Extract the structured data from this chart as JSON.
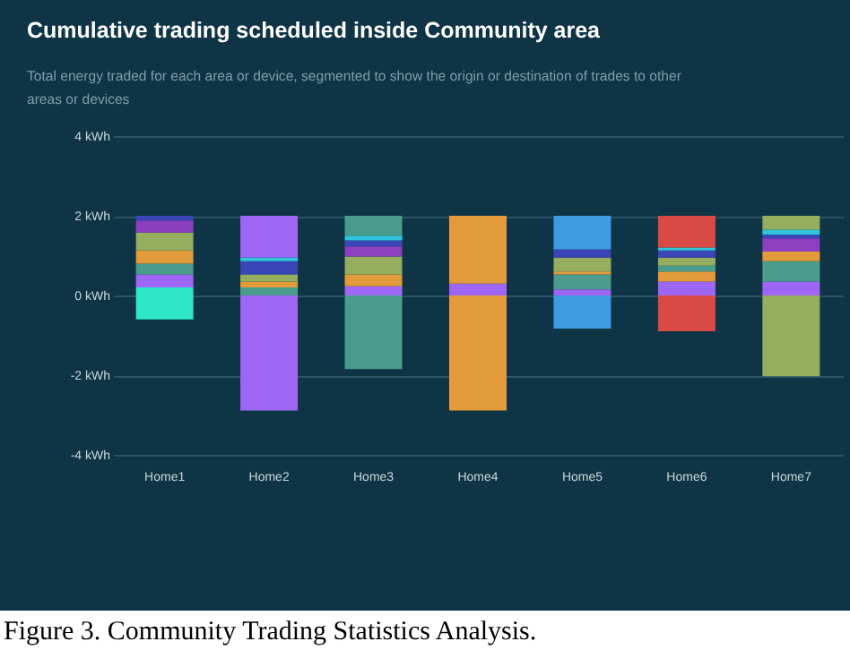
{
  "chart_data": {
    "type": "bar",
    "stacked": true,
    "title": "Cumulative trading scheduled inside Community area",
    "subtitle": "Total energy traded for each area or device, segmented to show the origin or destination of trades to other areas or devices",
    "categories": [
      "Home1",
      "Home2",
      "Home3",
      "Home4",
      "Home5",
      "Home6",
      "Home7"
    ],
    "series": [
      {
        "values": [
          -0.6,
          -2.89,
          -1.85,
          -2.89,
          -0.83,
          -0.9,
          -2.03
        ],
        "colors": [
          "#2ee6c8",
          "#9d66f5",
          "#4a9d8c",
          "#e39a3b",
          "#3f9be0",
          "#d94a45",
          "#94ad5f"
        ]
      },
      {
        "values": [
          0.2,
          0.2,
          0.23,
          0.3,
          0.15,
          0.35,
          0.35
        ],
        "colors": [
          "#2ee6c8",
          "#4a9d8c",
          "#9d66f5",
          "#9d66f5",
          "#9d66f5",
          "#9d66f5",
          "#9d66f5"
        ]
      },
      {
        "values": [
          0.33,
          0.15,
          0.3,
          1.7,
          0.38,
          0.25,
          0.51
        ],
        "colors": [
          "#9d66f5",
          "#e39a3b",
          "#e39a3b",
          "#e39a3b",
          "#4a9d8c",
          "#e39a3b",
          "#4a9d8c"
        ]
      },
      {
        "values": [
          0.27,
          0.18,
          0.45,
          null,
          0.07,
          0.15,
          0.24
        ],
        "colors": [
          "#4a9d8c",
          "#94ad5f",
          "#94ad5f",
          null,
          "#e39a3b",
          "#4a9d8c",
          "#e39a3b"
        ]
      },
      {
        "values": [
          0.33,
          0.33,
          0.25,
          null,
          0.35,
          0.2,
          0.33
        ],
        "colors": [
          "#e39a3b",
          "#3a46b8",
          "#8e3fbf",
          null,
          "#94ad5f",
          "#94ad5f",
          "#8e3fbf"
        ]
      },
      {
        "values": [
          0.45,
          0.09,
          0.15,
          null,
          0.21,
          0.18,
          0.1
        ],
        "colors": [
          "#94ad5f",
          "#2fc6dc",
          "#3a46b8",
          null,
          "#3a46b8",
          "#3a46b8",
          "#3a46b8"
        ]
      },
      {
        "values": [
          0.3,
          1.05,
          0.12,
          null,
          0.84,
          0.07,
          0.12
        ],
        "colors": [
          "#8e3fbf",
          "#9d66f5",
          "#2fc6dc",
          null,
          "#3f9be0",
          "#2fc6dc",
          "#2fc6dc"
        ]
      },
      {
        "values": [
          0.12,
          null,
          0.5,
          null,
          null,
          0.8,
          0.35
        ],
        "colors": [
          "#3a46b8",
          null,
          "#4a9d8c",
          null,
          null,
          "#d94a45",
          "#94ad5f"
        ]
      }
    ],
    "ylim": [
      -4,
      4
    ],
    "yticks": [
      {
        "value": -4,
        "label": "-4 kWh"
      },
      {
        "value": -2,
        "label": "-2 kWh"
      },
      {
        "value": 0,
        "label": "0 kWh"
      },
      {
        "value": 2,
        "label": "2 kWh"
      },
      {
        "value": 4,
        "label": "4 kWh"
      }
    ],
    "grid": "y",
    "annotations": [
      "Figure 3. Community Trading Statistics Analysis."
    ]
  }
}
